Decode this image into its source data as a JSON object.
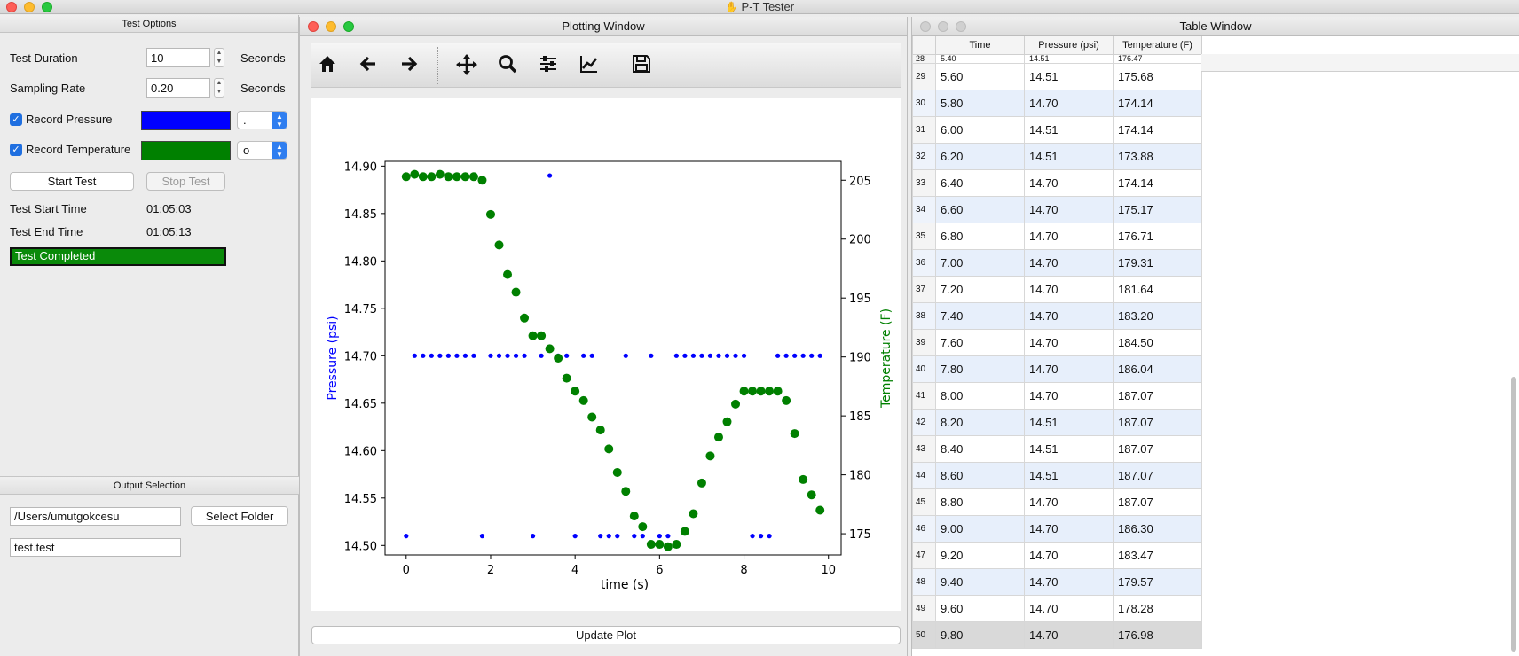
{
  "app": {
    "title": "P-T Tester",
    "app_icon": "hand-icon"
  },
  "test_options": {
    "title": "Test Options",
    "duration": {
      "label": "Test Duration",
      "value": "10",
      "unit": "Seconds"
    },
    "sampling": {
      "label": "Sampling Rate",
      "value": "0.20",
      "unit": "Seconds"
    },
    "record_pressure": {
      "label": "Record Pressure",
      "checked": true,
      "color": "#0000ff",
      "marker": "."
    },
    "record_temperature": {
      "label": "Record Temperature",
      "checked": true,
      "color": "#008000",
      "marker": "o"
    },
    "start_label": "Start Test",
    "stop_label": "Stop Test",
    "start_time": {
      "label": "Test Start Time",
      "value": "01:05:03"
    },
    "end_time": {
      "label": "Test End Time",
      "value": "01:05:13"
    },
    "status": "Test Completed"
  },
  "output": {
    "title": "Output Selection",
    "folder": "/Users/umutgokcesu",
    "select_label": "Select Folder",
    "filename": "test.test"
  },
  "plot_window": {
    "title": "Plotting Window",
    "toolbar": [
      "home-icon",
      "back-arrow-icon",
      "forward-arrow-icon",
      "pan-icon",
      "zoom-icon",
      "configure-subplots-icon",
      "edit-axis-icon",
      "save-icon"
    ],
    "update_label": "Update Plot"
  },
  "chart_data": {
    "type": "scatter",
    "xlabel": "time (s)",
    "ylabel": "Pressure (psi)",
    "y2label": "Temperature (F)",
    "xlim": [
      -0.5,
      10.3
    ],
    "ylim": [
      14.49,
      14.905
    ],
    "y2lim": [
      173.2,
      206.6
    ],
    "xticks": [
      0,
      2,
      4,
      6,
      8,
      10
    ],
    "yticks": [
      "14.50",
      "14.55",
      "14.60",
      "14.65",
      "14.70",
      "14.75",
      "14.80",
      "14.85",
      "14.90"
    ],
    "y2ticks": [
      175,
      180,
      185,
      190,
      195,
      200,
      205
    ],
    "x": [
      0,
      0.2,
      0.4,
      0.6,
      0.8,
      1.0,
      1.2,
      1.4,
      1.6,
      1.8,
      2.0,
      2.2,
      2.4,
      2.6,
      2.8,
      3.0,
      3.2,
      3.4,
      3.6,
      3.8,
      4.0,
      4.2,
      4.4,
      4.6,
      4.8,
      5.0,
      5.2,
      5.4,
      5.6,
      5.8,
      6.0,
      6.2,
      6.4,
      6.6,
      6.8,
      7.0,
      7.2,
      7.4,
      7.6,
      7.8,
      8.0,
      8.2,
      8.4,
      8.6,
      8.8,
      9.0,
      9.2,
      9.4,
      9.6,
      9.8
    ],
    "series": [
      {
        "values": [
          14.51,
          14.7,
          14.7,
          14.7,
          14.7,
          14.7,
          14.7,
          14.7,
          14.7,
          14.51,
          14.7,
          14.7,
          14.7,
          14.7,
          14.7,
          14.51,
          14.7,
          14.89,
          14.7,
          14.7,
          14.51,
          14.7,
          14.7,
          14.51,
          14.51,
          14.51,
          14.7,
          14.51,
          14.51,
          14.7,
          14.51,
          14.51,
          14.7,
          14.7,
          14.7,
          14.7,
          14.7,
          14.7,
          14.7,
          14.7,
          14.7,
          14.51,
          14.51,
          14.51,
          14.7,
          14.7,
          14.7,
          14.7,
          14.7,
          14.7
        ]
      },
      {
        "values": [
          205.3,
          205.5,
          205.3,
          205.3,
          205.5,
          205.3,
          205.3,
          205.3,
          205.3,
          205.0,
          202.1,
          199.5,
          197.0,
          195.5,
          193.3,
          191.8,
          191.8,
          190.7,
          189.9,
          188.2,
          187.1,
          186.3,
          184.9,
          183.8,
          182.2,
          180.2,
          178.6,
          176.5,
          175.6,
          174.1,
          174.1,
          173.9,
          174.1,
          175.2,
          176.7,
          179.3,
          181.6,
          183.2,
          184.5,
          186.0,
          187.1,
          187.1,
          187.1,
          187.1,
          187.1,
          186.3,
          183.5,
          179.6,
          178.3,
          177.0
        ]
      }
    ]
  },
  "table_window": {
    "title": "Table Window",
    "columns": [
      "Time",
      "Pressure (psi)",
      "Temperature (F)"
    ],
    "partial_row": [
      "28",
      "5.40",
      "14.51",
      "176.47"
    ],
    "rows": [
      [
        "29",
        "5.60",
        "14.51",
        "175.68"
      ],
      [
        "30",
        "5.80",
        "14.70",
        "174.14"
      ],
      [
        "31",
        "6.00",
        "14.51",
        "174.14"
      ],
      [
        "32",
        "6.20",
        "14.51",
        "173.88"
      ],
      [
        "33",
        "6.40",
        "14.70",
        "174.14"
      ],
      [
        "34",
        "6.60",
        "14.70",
        "175.17"
      ],
      [
        "35",
        "6.80",
        "14.70",
        "176.71"
      ],
      [
        "36",
        "7.00",
        "14.70",
        "179.31"
      ],
      [
        "37",
        "7.20",
        "14.70",
        "181.64"
      ],
      [
        "38",
        "7.40",
        "14.70",
        "183.20"
      ],
      [
        "39",
        "7.60",
        "14.70",
        "184.50"
      ],
      [
        "40",
        "7.80",
        "14.70",
        "186.04"
      ],
      [
        "41",
        "8.00",
        "14.70",
        "187.07"
      ],
      [
        "42",
        "8.20",
        "14.51",
        "187.07"
      ],
      [
        "43",
        "8.40",
        "14.51",
        "187.07"
      ],
      [
        "44",
        "8.60",
        "14.51",
        "187.07"
      ],
      [
        "45",
        "8.80",
        "14.70",
        "187.07"
      ],
      [
        "46",
        "9.00",
        "14.70",
        "186.30"
      ],
      [
        "47",
        "9.20",
        "14.70",
        "183.47"
      ],
      [
        "48",
        "9.40",
        "14.70",
        "179.57"
      ],
      [
        "49",
        "9.60",
        "14.70",
        "178.28"
      ],
      [
        "50",
        "9.80",
        "14.70",
        "176.98"
      ]
    ]
  }
}
